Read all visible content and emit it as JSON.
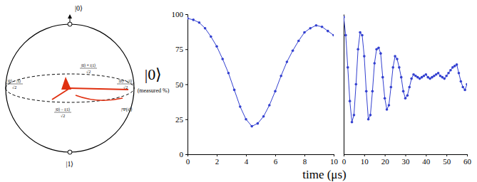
{
  "diagram": {
    "labels": [
      {
        "text": "|0⟩"
      },
      {
        "text": "|1⟩"
      },
      {
        "numerator": "|0⟩ − |1⟩",
        "denominator": "√2"
      },
      {
        "numerator": "|0⟩ + |1⟩",
        "denominator": "√2"
      },
      {
        "numerator": "|0⟩ + i|1⟩",
        "denominator": "√2"
      },
      {
        "numerator": "|0⟩ − i|1⟩",
        "denominator": "√2"
      },
      {
        "text": "|Ψ(t)⟩"
      }
    ]
  },
  "chart_data": [
    {
      "type": "line",
      "ylabel": [
        "|0⟩",
        "(measured %)"
      ],
      "color": "#3340d0",
      "marker": "circle",
      "line_style": "solid",
      "x": [
        0,
        0.4,
        0.8,
        1.2,
        1.6,
        2.0,
        2.4,
        2.8,
        3.2,
        3.6,
        4.0,
        4.4,
        4.8,
        5.2,
        5.6,
        6.0,
        6.4,
        6.8,
        7.2,
        7.6,
        8.0,
        8.4,
        8.8,
        9.2,
        9.6,
        10
      ],
      "values": [
        97,
        96,
        94,
        90,
        84,
        77,
        68,
        58,
        46,
        34,
        25,
        20,
        22,
        27,
        35,
        45,
        56,
        66,
        74,
        81,
        87,
        90,
        92,
        91,
        88,
        85
      ],
      "xlim": [
        0,
        10
      ],
      "xticks": [
        0,
        2,
        4,
        6,
        8,
        10
      ],
      "ylim": [
        0,
        100
      ],
      "yticks": [
        0,
        25,
        50,
        75,
        100
      ]
    },
    {
      "type": "line",
      "xlabel": "time (μs)",
      "color": "#3340d0",
      "marker": "circle",
      "line_style": "solid",
      "tick_labels": "x",
      "x": [
        0,
        1,
        2,
        3,
        4,
        5,
        6,
        7,
        8,
        9,
        10,
        11,
        12,
        13,
        14,
        15,
        16,
        17,
        18,
        19,
        20,
        21,
        22,
        23,
        24,
        25,
        26,
        27,
        28,
        29,
        30,
        31,
        32,
        33,
        34,
        35,
        36,
        37,
        38,
        39,
        40,
        41,
        42,
        43,
        44,
        45,
        46,
        47,
        48,
        49,
        50,
        51,
        52,
        53,
        54,
        55,
        56,
        57,
        58,
        59,
        60
      ],
      "values": [
        98,
        85,
        62,
        38,
        23,
        28,
        50,
        75,
        87,
        85,
        70,
        45,
        25,
        28,
        45,
        65,
        75,
        76,
        72,
        55,
        40,
        32,
        35,
        48,
        62,
        70,
        68,
        62,
        55,
        45,
        40,
        42,
        48,
        54,
        57,
        56,
        55,
        54,
        55,
        56,
        57,
        55,
        54,
        55,
        56,
        57,
        58,
        56,
        55,
        54,
        56,
        58,
        60,
        62,
        63,
        64,
        58,
        52,
        48,
        46,
        50
      ],
      "xlim": [
        0,
        60
      ],
      "xticks": [
        0,
        10,
        20,
        30,
        40,
        50,
        60
      ],
      "ylim": [
        0,
        100
      ]
    }
  ]
}
